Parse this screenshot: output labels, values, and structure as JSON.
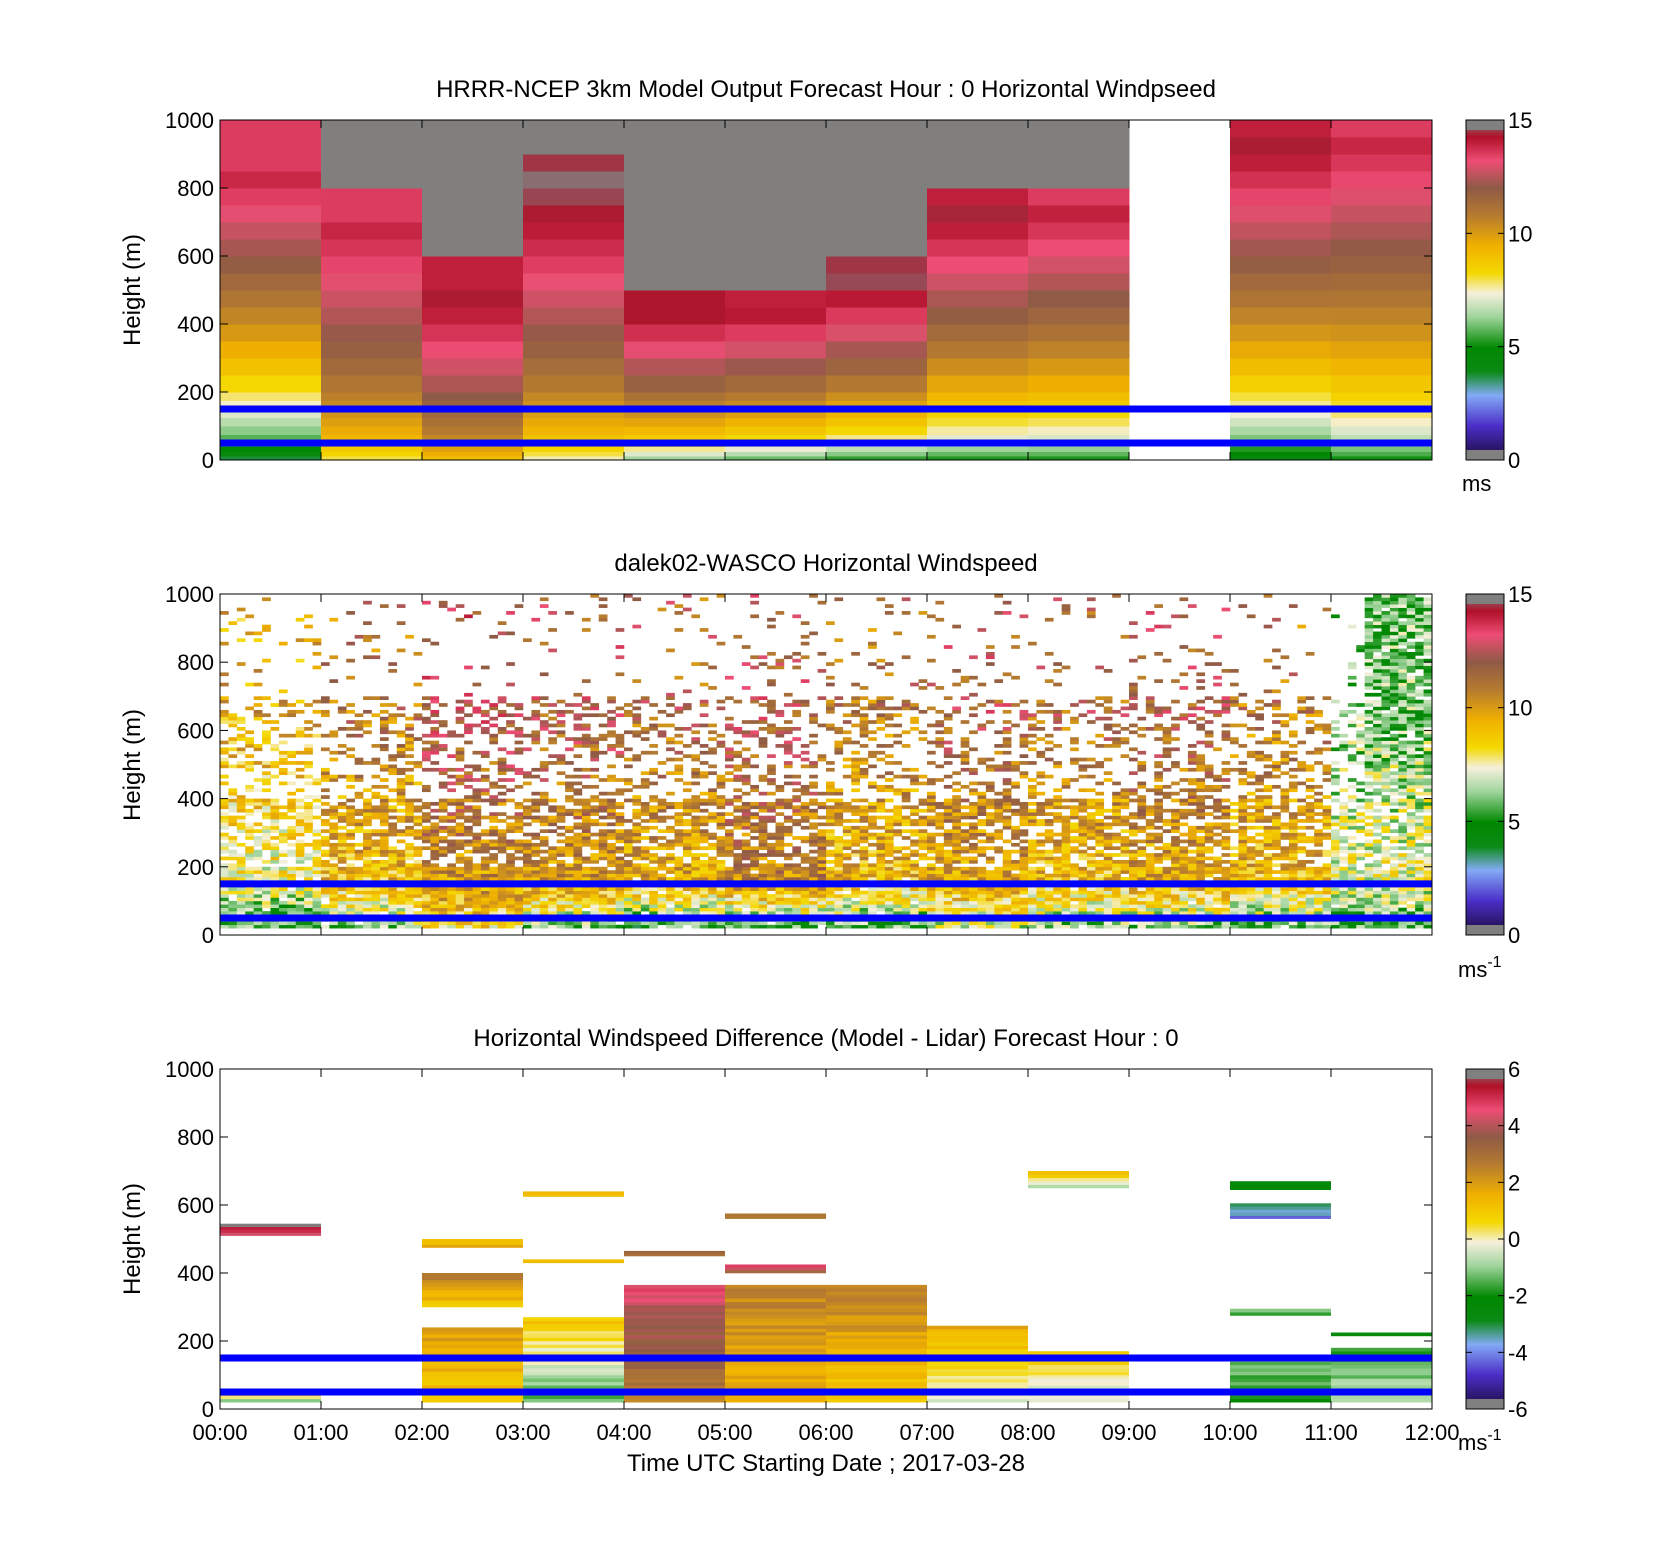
{
  "figure": {
    "xlabel": "Time UTC  Starting Date ; 2017-03-28",
    "x_ticks": [
      "00:00",
      "01:00",
      "02:00",
      "03:00",
      "04:00",
      "05:00",
      "06:00",
      "07:00",
      "08:00",
      "09:00",
      "10:00",
      "11:00",
      "12:00"
    ]
  },
  "chart_data": [
    {
      "type": "heatmap",
      "title": "HRRR-NCEP 3km Model Output   Forecast Hour : 0 Horizontal Windpseed",
      "ylabel": "Height (m)",
      "xlim": [
        0,
        12
      ],
      "ylim": [
        0,
        1000
      ],
      "y_ticks": [
        0,
        200,
        400,
        600,
        800,
        1000
      ],
      "colorbar": {
        "min": 0,
        "max": 15,
        "ticks": [
          0,
          5,
          10,
          15
        ],
        "unit": "ms",
        "unit_sup": ""
      },
      "reference_lines_m": [
        50,
        150
      ],
      "reference_line_color": "#0000ff",
      "no_data_hours": [
        9
      ],
      "columns": [
        {
          "hour": 0,
          "top": 1000,
          "base": 3.0,
          "peak": 14.0,
          "peak_h": 850
        },
        {
          "hour": 1,
          "top": 800,
          "base": 7.5,
          "peak": 14.0,
          "peak_h": 700
        },
        {
          "hour": 2,
          "top": 600,
          "base": 8.5,
          "peak": 14.5,
          "peak_h": 500
        },
        {
          "hour": 3,
          "top": 900,
          "base": 7.0,
          "peak": 15.0,
          "peak_h": 850
        },
        {
          "hour": 4,
          "top": 500,
          "base": 5.5,
          "peak": 14.8,
          "peak_h": 470
        },
        {
          "hour": 5,
          "top": 500,
          "base": 5.0,
          "peak": 14.5,
          "peak_h": 460
        },
        {
          "hour": 6,
          "top": 600,
          "base": 4.5,
          "peak": 15.0,
          "peak_h": 560
        },
        {
          "hour": 7,
          "top": 800,
          "base": 4.5,
          "peak": 14.5,
          "peak_h": 740
        },
        {
          "hour": 8,
          "top": 800,
          "base": 4.5,
          "peak": 14.0,
          "peak_h": 730
        },
        {
          "hour": 10,
          "top": 1000,
          "base": 3.5,
          "peak": 14.5,
          "peak_h": 950
        },
        {
          "hour": 11,
          "top": 1000,
          "base": 4.5,
          "peak": 14.0,
          "peak_h": 950
        }
      ]
    },
    {
      "type": "heatmap",
      "title": "dalek02-WASCO  Horizontal Windspeed",
      "ylabel": "Height (m)",
      "xlim": [
        0,
        12
      ],
      "ylim": [
        0,
        1000
      ],
      "y_ticks": [
        0,
        200,
        400,
        600,
        800,
        1000
      ],
      "colorbar": {
        "min": 0,
        "max": 15,
        "ticks": [
          0,
          5,
          10,
          15
        ],
        "unit": "ms",
        "unit_sup": "-1"
      },
      "reference_lines_m": [
        50,
        150
      ],
      "reference_line_color": "#0000ff",
      "profile_segments": [
        {
          "x0": 0.0,
          "x1": 1.0,
          "base": 5.0,
          "mid": 7.5,
          "top": 9.5
        },
        {
          "x0": 1.0,
          "x1": 2.0,
          "base": 6.0,
          "mid": 9.0,
          "top": 11.0
        },
        {
          "x0": 2.0,
          "x1": 3.0,
          "base": 8.0,
          "mid": 10.0,
          "top": 12.5
        },
        {
          "x0": 3.0,
          "x1": 4.0,
          "base": 5.5,
          "mid": 10.0,
          "top": 12.0
        },
        {
          "x0": 4.0,
          "x1": 5.0,
          "base": 4.5,
          "mid": 9.5,
          "top": 11.5
        },
        {
          "x0": 5.0,
          "x1": 6.0,
          "base": 4.5,
          "mid": 10.5,
          "top": 12.0
        },
        {
          "x0": 6.0,
          "x1": 7.0,
          "base": 5.0,
          "mid": 9.0,
          "top": 11.0
        },
        {
          "x0": 7.0,
          "x1": 8.0,
          "base": 6.5,
          "mid": 9.5,
          "top": 12.0
        },
        {
          "x0": 8.0,
          "x1": 9.0,
          "base": 5.5,
          "mid": 9.0,
          "top": 11.5
        },
        {
          "x0": 9.0,
          "x1": 10.0,
          "base": 5.5,
          "mid": 9.5,
          "top": 12.0
        },
        {
          "x0": 10.0,
          "x1": 11.0,
          "base": 5.0,
          "mid": 9.0,
          "top": 11.0
        },
        {
          "x0": 11.0,
          "x1": 12.0,
          "base": 5.0,
          "mid": 7.5,
          "top": 6.0
        }
      ]
    },
    {
      "type": "heatmap",
      "title": "Horizontal Windspeed Difference (Model - Lidar) Forecast Hour : 0",
      "ylabel": "Height (m)",
      "xlim": [
        0,
        12
      ],
      "ylim": [
        0,
        1000
      ],
      "y_ticks": [
        0,
        200,
        400,
        600,
        800,
        1000
      ],
      "colorbar": {
        "min": -6,
        "max": 6,
        "ticks": [
          -6,
          -4,
          -2,
          0,
          2,
          4,
          6
        ],
        "unit": "ms",
        "unit_sup": "-1"
      },
      "reference_lines_m": [
        50,
        150
      ],
      "reference_line_color": "#0000ff",
      "blocks": [
        {
          "x0": 0,
          "x1": 1,
          "y0": 510,
          "y1": 545,
          "v_bottom": 4.5,
          "v_top": 6.0
        },
        {
          "x0": 0,
          "x1": 1,
          "y0": 20,
          "y1": 60,
          "v_bottom": -1.5,
          "v_top": 3.5
        },
        {
          "x0": 2,
          "x1": 3,
          "y0": 475,
          "y1": 500,
          "v_bottom": 1.5,
          "v_top": 1.5
        },
        {
          "x0": 2,
          "x1": 3,
          "y0": 300,
          "y1": 400,
          "v_bottom": 1.0,
          "v_top": 2.5
        },
        {
          "x0": 2,
          "x1": 3,
          "y0": 20,
          "y1": 240,
          "v_bottom": 1.0,
          "v_top": 2.0
        },
        {
          "x0": 3,
          "x1": 4,
          "y0": 625,
          "y1": 640,
          "v_bottom": 1.5,
          "v_top": 1.5
        },
        {
          "x0": 3,
          "x1": 4,
          "y0": 430,
          "y1": 440,
          "v_bottom": 1.0,
          "v_top": 1.0
        },
        {
          "x0": 3,
          "x1": 4,
          "y0": 20,
          "y1": 270,
          "v_bottom": -1.5,
          "v_top": 1.0
        },
        {
          "x0": 4,
          "x1": 5,
          "y0": 450,
          "y1": 465,
          "v_bottom": 3.2,
          "v_top": 3.2
        },
        {
          "x0": 4,
          "x1": 5,
          "y0": 20,
          "y1": 365,
          "v_bottom": 2.5,
          "v_top": 4.5
        },
        {
          "x0": 5,
          "x1": 6,
          "y0": 560,
          "y1": 575,
          "v_bottom": 2.8,
          "v_top": 2.8
        },
        {
          "x0": 5,
          "x1": 6,
          "y0": 400,
          "y1": 425,
          "v_bottom": 3.2,
          "v_top": 4.5
        },
        {
          "x0": 5,
          "x1": 6,
          "y0": 20,
          "y1": 365,
          "v_bottom": 1.5,
          "v_top": 2.5
        },
        {
          "x0": 6,
          "x1": 7,
          "y0": 20,
          "y1": 365,
          "v_bottom": 1.0,
          "v_top": 2.5
        },
        {
          "x0": 7,
          "x1": 8,
          "y0": 20,
          "y1": 245,
          "v_bottom": -0.5,
          "v_top": 1.5
        },
        {
          "x0": 8,
          "x1": 9,
          "y0": 650,
          "y1": 700,
          "v_bottom": -1.0,
          "v_top": 1.5
        },
        {
          "x0": 8,
          "x1": 9,
          "y0": 20,
          "y1": 170,
          "v_bottom": -0.5,
          "v_top": 0.8
        },
        {
          "x0": 10,
          "x1": 11,
          "y0": 645,
          "y1": 670,
          "v_bottom": -2.5,
          "v_top": -2.5
        },
        {
          "x0": 10,
          "x1": 11,
          "y0": 560,
          "y1": 605,
          "v_bottom": -4.0,
          "v_top": -3.0
        },
        {
          "x0": 10,
          "x1": 11,
          "y0": 275,
          "y1": 295,
          "v_bottom": -1.5,
          "v_top": -1.5
        },
        {
          "x0": 10,
          "x1": 11,
          "y0": 20,
          "y1": 160,
          "v_bottom": -2.0,
          "v_top": -1.0
        },
        {
          "x0": 11,
          "x1": 12,
          "y0": 215,
          "y1": 225,
          "v_bottom": -2.5,
          "v_top": -2.5
        },
        {
          "x0": 11,
          "x1": 12,
          "y0": 20,
          "y1": 180,
          "v_bottom": -0.5,
          "v_top": -2.0
        }
      ]
    }
  ]
}
